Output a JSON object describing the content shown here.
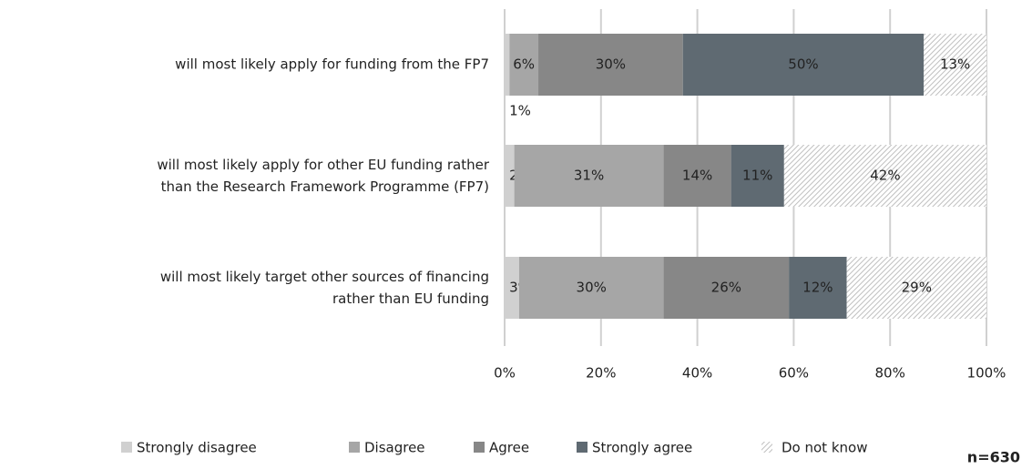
{
  "chart_data": {
    "type": "stacked-barh",
    "categories": [
      "will most likely apply for funding from the FP7",
      "will most likely apply for other EU funding rather\nthan the Research Framework Programme (FP7)",
      "will most likely target other sources of financing\nrather than EU funding"
    ],
    "series": [
      {
        "name": "Strongly disagree",
        "color": "#d0d0d0",
        "values": [
          1,
          2,
          3
        ],
        "value_labels": [
          "1%",
          "2%",
          "3%"
        ]
      },
      {
        "name": "Disagree",
        "color": "#a6a6a6",
        "values": [
          6,
          31,
          30
        ],
        "value_labels": [
          "6%",
          "31%",
          "30%"
        ]
      },
      {
        "name": "Agree",
        "color": "#878787",
        "values": [
          30,
          14,
          26
        ],
        "value_labels": [
          "30%",
          "14%",
          "26%"
        ]
      },
      {
        "name": "Strongly agree",
        "color": "#5f6a72",
        "values": [
          50,
          11,
          12
        ],
        "value_labels": [
          "50%",
          "11%",
          "12%"
        ]
      },
      {
        "name": "Do not know",
        "color": "#bfbfbf",
        "pattern": "hatch",
        "values": [
          13,
          42,
          29
        ],
        "value_labels": [
          "13%",
          "42%",
          "29%"
        ]
      }
    ],
    "xlim": [
      0,
      100
    ],
    "xticks": [
      {
        "value": 0,
        "label": "0%"
      },
      {
        "value": 20,
        "label": "20%"
      },
      {
        "value": 40,
        "label": "40%"
      },
      {
        "value": 60,
        "label": "60%"
      },
      {
        "value": 80,
        "label": "80%"
      },
      {
        "value": 100,
        "label": "100%"
      }
    ],
    "grid": true,
    "legend": "bottom",
    "note": "n=630"
  }
}
